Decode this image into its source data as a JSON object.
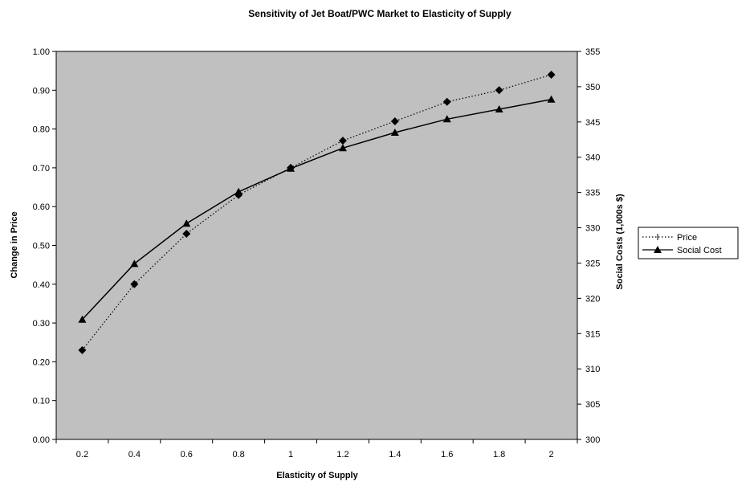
{
  "chart_data": {
    "type": "line",
    "title": "Sensitivity of Jet Boat/PWC Market to Elasticity of Supply",
    "xlabel": "Elasticity of Supply",
    "ylabel_left": "Change in Price",
    "ylabel_right": "Social Costs (1,000s $)",
    "categories": [
      "0.2",
      "0.4",
      "0.6",
      "0.8",
      "1",
      "1.2",
      "1.4",
      "1.6",
      "1.8",
      "2"
    ],
    "y_left_ticks": [
      "0.00",
      "0.10",
      "0.20",
      "0.30",
      "0.40",
      "0.50",
      "0.60",
      "0.70",
      "0.80",
      "0.90",
      "1.00"
    ],
    "y_right_ticks": [
      "300",
      "305",
      "310",
      "315",
      "320",
      "325",
      "330",
      "335",
      "340",
      "345",
      "350",
      "355"
    ],
    "ylim_left": [
      0,
      1
    ],
    "ylim_right": [
      300,
      355
    ],
    "grid": false,
    "legend_position": "right",
    "plot_background": "#c0c0c0",
    "series": [
      {
        "name": "Price",
        "axis": "left",
        "marker": "diamond",
        "line_style": "dotted",
        "color": "#000000",
        "values": [
          0.23,
          0.4,
          0.53,
          0.63,
          0.7,
          0.77,
          0.82,
          0.87,
          0.9,
          0.94
        ]
      },
      {
        "name": "Social Cost",
        "axis": "right",
        "marker": "triangle",
        "line_style": "solid",
        "color": "#000000",
        "values": [
          317.0,
          324.9,
          330.6,
          335.1,
          338.4,
          341.3,
          343.5,
          345.4,
          346.8,
          348.2
        ]
      }
    ]
  }
}
